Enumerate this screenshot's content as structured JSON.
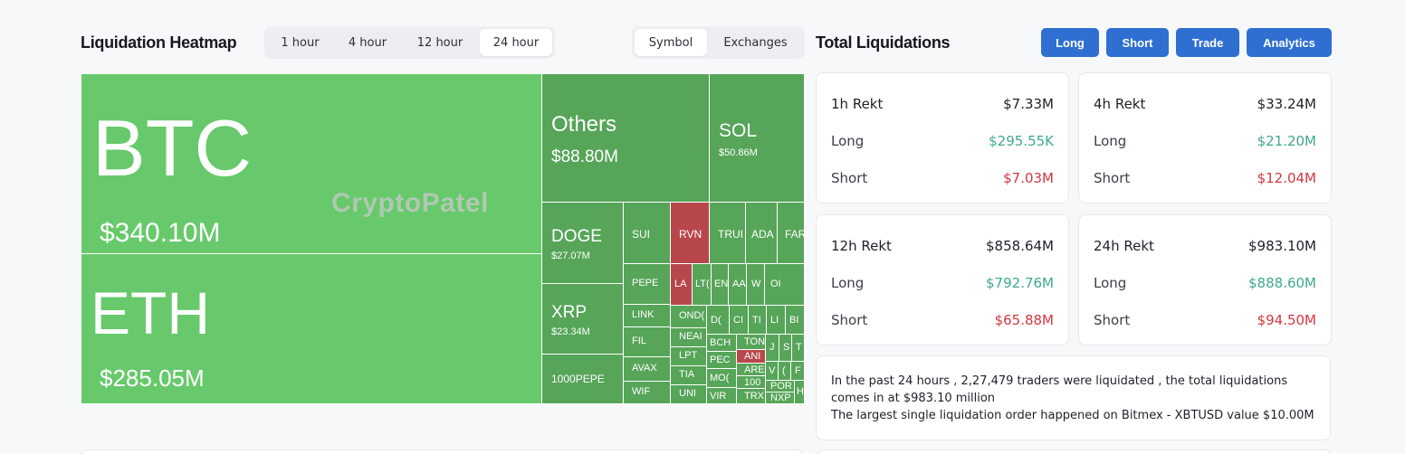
{
  "heatmap": {
    "title": "Liquidation Heatmap",
    "timeframes": [
      "1 hour",
      "4 hour",
      "12 hour",
      "24 hour"
    ],
    "active_timeframe": "24 hour",
    "views": [
      "Symbol",
      "Exchanges"
    ],
    "active_view": "Symbol",
    "watermark": "CryptoPatel",
    "tiles": {
      "btc": {
        "symbol": "BTC",
        "value": "$340.10M"
      },
      "eth": {
        "symbol": "ETH",
        "value": "$285.05M"
      },
      "others": {
        "symbol": "Others",
        "value": "$88.80M"
      },
      "sol": {
        "symbol": "SOL",
        "value": "$50.86M"
      },
      "doge": {
        "symbol": "DOGE",
        "value": "$27.07M"
      },
      "xrp": {
        "symbol": "XRP",
        "value": "$23.34M"
      },
      "pepe1000": {
        "symbol": "1000PEPE"
      },
      "sui": {
        "symbol": "SUI"
      },
      "rvn": {
        "symbol": "RVN"
      },
      "trump": {
        "symbol": "TRUI"
      },
      "ada": {
        "symbol": "ADA"
      },
      "far": {
        "symbol": "FAR"
      },
      "pepe": {
        "symbol": "PEPE"
      },
      "link": {
        "symbol": "LINK"
      },
      "fil": {
        "symbol": "FIL"
      },
      "avax": {
        "symbol": "AVAX"
      },
      "wif": {
        "symbol": "WIF"
      },
      "la": {
        "symbol": "LA"
      },
      "ltc": {
        "symbol": "LT("
      },
      "en": {
        "symbol": "EN"
      },
      "aa": {
        "symbol": "AA"
      },
      "w": {
        "symbol": "W"
      },
      "o": {
        "symbol": "OI"
      },
      "ond": {
        "symbol": "OND("
      },
      "near": {
        "symbol": "NEAI"
      },
      "lpt": {
        "symbol": "LPT"
      },
      "tia": {
        "symbol": "TIA"
      },
      "uni": {
        "symbol": "UNI"
      },
      "dc": {
        "symbol": "D("
      },
      "cr": {
        "symbol": "CI"
      },
      "tf": {
        "symbol": "TI"
      },
      "ld": {
        "symbol": "LI"
      },
      "b": {
        "symbol": "BI"
      },
      "bch": {
        "symbol": "BCH"
      },
      "pec": {
        "symbol": "PEC"
      },
      "mo": {
        "symbol": "MO("
      },
      "vir": {
        "symbol": "VIR"
      },
      "ton": {
        "symbol": "TON"
      },
      "an": {
        "symbol": "ANI"
      },
      "are": {
        "symbol": "ARE"
      },
      "hundred": {
        "symbol": "100"
      },
      "trx": {
        "symbol": "TRX"
      },
      "j": {
        "symbol": "J"
      },
      "s": {
        "symbol": "S"
      },
      "t": {
        "symbol": "T"
      },
      "wv": {
        "symbol": "V"
      },
      "c": {
        "symbol": "("
      },
      "f": {
        "symbol": "F"
      },
      "por": {
        "symbol": "POR"
      },
      "nxp": {
        "symbol": "NXP"
      },
      "h": {
        "symbol": "H"
      }
    }
  },
  "totals": {
    "title": "Total Liquidations",
    "buttons": [
      "Long",
      "Short",
      "Trade",
      "Analytics"
    ],
    "cards": [
      {
        "label": "1h Rekt",
        "total": "$7.33M",
        "long_label": "Long",
        "long": "$295.55K",
        "short_label": "Short",
        "short": "$7.03M"
      },
      {
        "label": "4h Rekt",
        "total": "$33.24M",
        "long_label": "Long",
        "long": "$21.20M",
        "short_label": "Short",
        "short": "$12.04M"
      },
      {
        "label": "12h Rekt",
        "total": "$858.64M",
        "long_label": "Long",
        "long": "$792.76M",
        "short_label": "Short",
        "short": "$65.88M"
      },
      {
        "label": "24h Rekt",
        "total": "$983.10M",
        "long_label": "Long",
        "long": "$888.60M",
        "short_label": "Short",
        "short": "$94.50M"
      }
    ],
    "summary_line1": "In the past 24 hours , 2,27,479 traders were liquidated , the total liquidations comes in at $983.10 million",
    "summary_line2": "The largest single liquidation order happened on Bitmex - XBTUSD value $10.00M"
  },
  "colors": {
    "green_large": "#67c96b",
    "green_mid": "#57a559",
    "red": "#b8474c",
    "accent": "#2f6fd1",
    "long": "#3fa98a",
    "short": "#d6353f"
  }
}
